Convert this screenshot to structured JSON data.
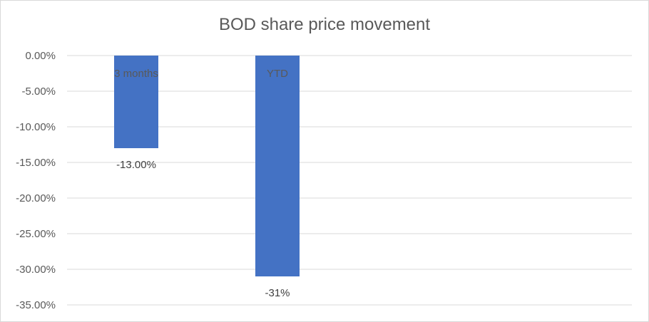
{
  "chart_data": {
    "type": "bar",
    "title": "BOD share price movement",
    "xlabel": "",
    "ylabel": "",
    "categories": [
      "3 months",
      "YTD"
    ],
    "values": [
      -0.13,
      -0.31
    ],
    "data_labels": [
      "-13.00%",
      "-31%"
    ],
    "ylim": [
      -0.35,
      0
    ],
    "yticks": [
      0,
      -0.05,
      -0.1,
      -0.15,
      -0.2,
      -0.25,
      -0.3,
      -0.35
    ],
    "ytick_labels": [
      "0.00%",
      "-5.00%",
      "-10.00%",
      "-15.00%",
      "-20.00%",
      "-25.00%",
      "-30.00%",
      "-35.00%"
    ],
    "grid": true,
    "legend": "none",
    "colors": {
      "bar": "#4472c4",
      "grid": "#d9d9d9",
      "text": "#595959"
    }
  }
}
